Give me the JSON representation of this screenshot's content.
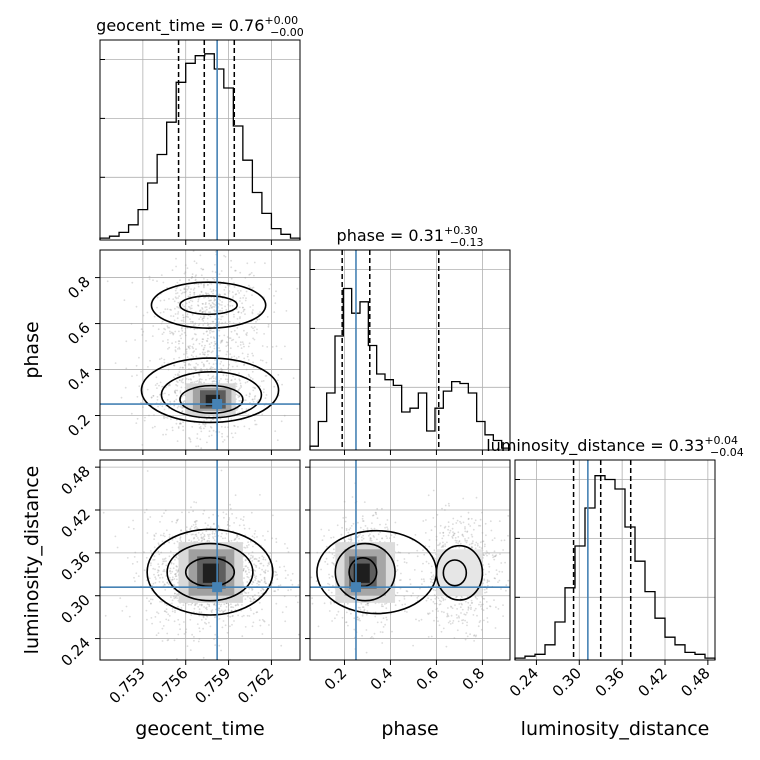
{
  "chart_data": {
    "type": "corner",
    "truth_color": "#4682b4",
    "params": [
      {
        "name": "geocent_time",
        "axis_label": "geocent_time",
        "title_prefix": "geocent_time = 0.76",
        "title_sup": "+0.00",
        "title_sub": "−0.00",
        "range": [
          0.75,
          0.764
        ],
        "ticks": [
          0.753,
          0.756,
          0.759,
          0.762
        ],
        "tick_labels": [
          "0.753",
          "0.756",
          "0.759",
          "0.762"
        ],
        "truth": 0.7582,
        "quantiles": [
          0.7555,
          0.7573,
          0.7594
        ],
        "hist": [
          0.01,
          0.02,
          0.04,
          0.08,
          0.16,
          0.3,
          0.45,
          0.62,
          0.83,
          0.93,
          0.97,
          0.98,
          0.9,
          0.8,
          0.6,
          0.42,
          0.25,
          0.14,
          0.06,
          0.03,
          0.01
        ]
      },
      {
        "name": "phase",
        "axis_label": "phase",
        "title_prefix": "phase = 0.31",
        "title_sup": "+0.30",
        "title_sub": "−0.13",
        "range": [
          0.05,
          0.92
        ],
        "ticks": [
          0.2,
          0.4,
          0.6,
          0.8
        ],
        "tick_labels": [
          "0.2",
          "0.4",
          "0.6",
          "0.8"
        ],
        "truth": 0.25,
        "quantiles": [
          0.19,
          0.31,
          0.61
        ],
        "hist": [
          0.02,
          0.15,
          0.3,
          0.6,
          0.85,
          0.72,
          0.78,
          0.55,
          0.4,
          0.37,
          0.34,
          0.2,
          0.22,
          0.3,
          0.1,
          0.22,
          0.31,
          0.36,
          0.35,
          0.3,
          0.15,
          0.08,
          0.05,
          0.01
        ]
      },
      {
        "name": "luminosity_distance",
        "axis_label": "luminosity_distance",
        "title_prefix": "luminosity_distance = 0.33",
        "title_sup": "+0.04",
        "title_sub": "−0.04",
        "range": [
          0.21,
          0.49
        ],
        "ticks": [
          0.24,
          0.3,
          0.36,
          0.42,
          0.48
        ],
        "tick_labels": [
          "0.24",
          "0.30",
          "0.36",
          "0.42",
          "0.48"
        ],
        "y_tick_labels": [
          "0.24",
          "0.30",
          "0.36",
          "0.42",
          "0.48"
        ],
        "truth": 0.312,
        "quantiles": [
          0.292,
          0.33,
          0.372
        ],
        "hist": [
          0.01,
          0.02,
          0.03,
          0.08,
          0.2,
          0.38,
          0.6,
          0.8,
          0.97,
          0.95,
          0.9,
          0.7,
          0.52,
          0.36,
          0.22,
          0.12,
          0.08,
          0.04,
          0.03,
          0.01
        ]
      }
    ],
    "phase_y_tick_labels": [
      "0.2",
      "0.4",
      "0.6",
      "0.8"
    ],
    "phase_y_ticks": [
      0.2,
      0.4,
      0.6,
      0.8
    ]
  }
}
